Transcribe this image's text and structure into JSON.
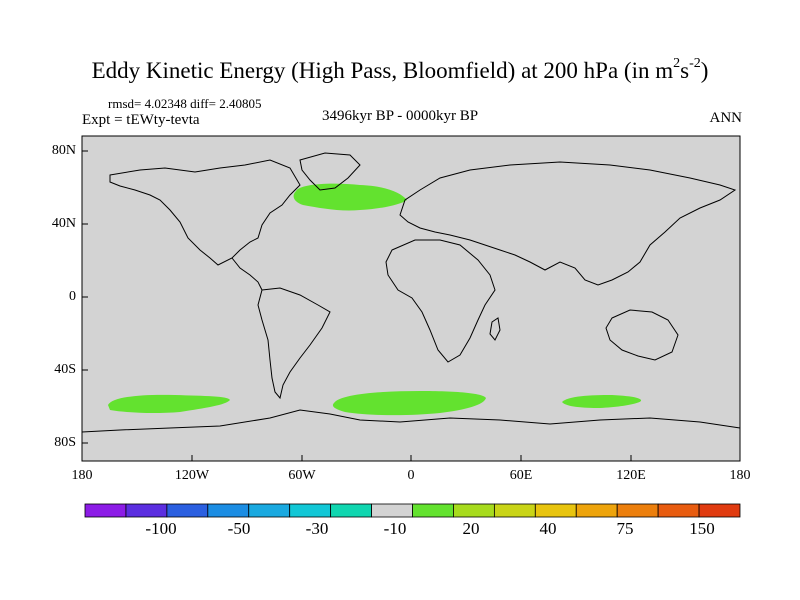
{
  "title": {
    "main": "Eddy Kinetic Energy (High Pass, Bloomfield) at 200 hPa (in m",
    "sup1": "2",
    "mid": "s",
    "sup2": "-2",
    "close": ")"
  },
  "stats": "rmsd= 4.02348  diff= 2.40805",
  "experiment": "Expt = tEWty-tevta",
  "period": "3496kyr BP - 0000kyr BP",
  "season": "ANN",
  "colors": {
    "land_ocean_fill": "#d3d3d3",
    "positive_anomaly": "#63e22f",
    "coastline": "#000000"
  },
  "axes": {
    "y_ticks": [
      "80N",
      "40N",
      "0",
      "40S",
      "80S"
    ],
    "x_ticks": [
      "180",
      "120W",
      "60W",
      "0",
      "60E",
      "120E",
      "180"
    ]
  },
  "map_data": {
    "projection": "cylindrical equidistant",
    "lon_range": [
      -180,
      180
    ],
    "lat_range": [
      -90,
      90
    ],
    "positive_regions": [
      {
        "name": "North Atlantic",
        "value": 20
      },
      {
        "name": "South Pacific",
        "value": 20
      },
      {
        "name": "South Atlantic / Indian",
        "value": 20
      },
      {
        "name": "South Indian (SE)",
        "value": 20
      }
    ]
  },
  "colorbar": {
    "labels": [
      "-100",
      "-50",
      "-30",
      "-10",
      "20",
      "40",
      "75",
      "150"
    ],
    "colors": [
      "#8c1ce6",
      "#5b2ee0",
      "#2b5fe0",
      "#1b8de3",
      "#1aa9e0",
      "#12c7d6",
      "#10d6b0",
      "#d3d3d3",
      "#63e22f",
      "#a7db1d",
      "#c9d417",
      "#e8c40f",
      "#eea40c",
      "#ec7f0d",
      "#e85c10",
      "#e03b10"
    ]
  }
}
